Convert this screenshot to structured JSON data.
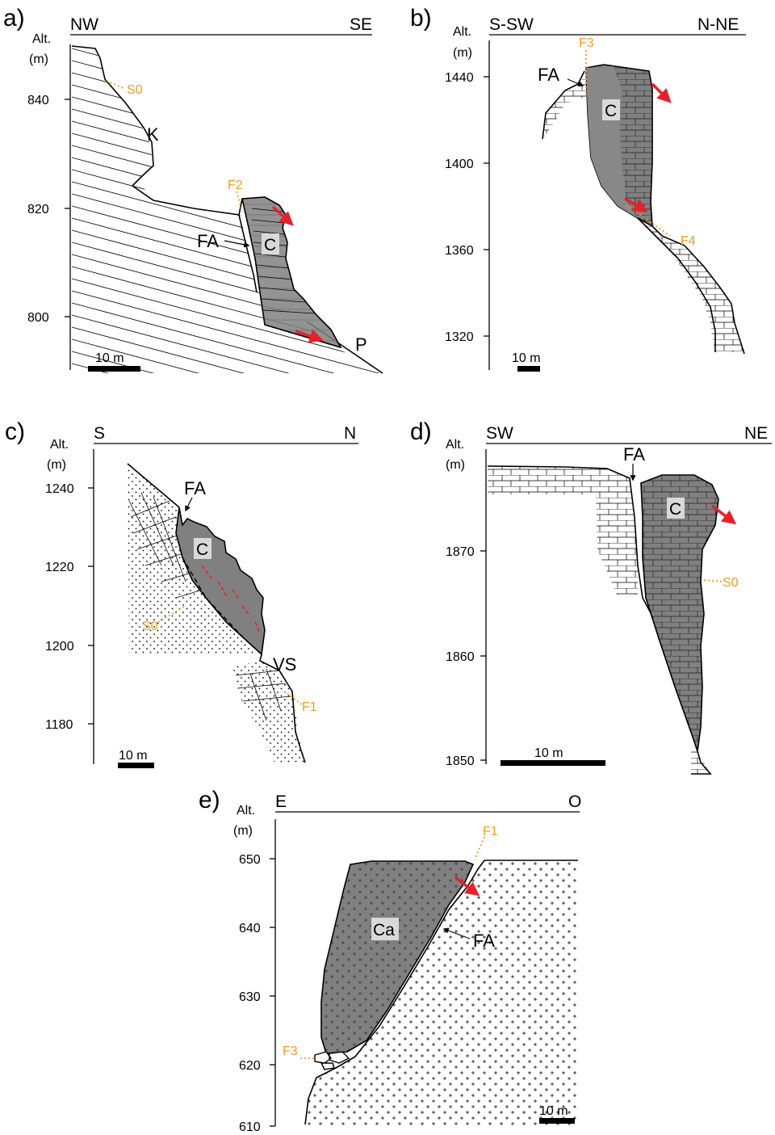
{
  "panels": {
    "a": {
      "letter": "a)",
      "dir_left": "NW",
      "dir_right": "SE",
      "alt_label_1": "Alt.",
      "alt_label_2": "(m)",
      "ticks": [
        "840",
        "820",
        "800"
      ],
      "labels": {
        "K": "K",
        "FA": "FA",
        "C": "C",
        "P": "P",
        "S0": "S0",
        "F2": "F2"
      },
      "scale": "10 m"
    },
    "b": {
      "letter": "b)",
      "dir_left": "S-SW",
      "dir_right": "N-NE",
      "alt_label_1": "Alt.",
      "alt_label_2": "(m)",
      "ticks": [
        "1440",
        "1400",
        "1360",
        "1320"
      ],
      "labels": {
        "FA": "FA",
        "C": "C",
        "F3": "F3",
        "F4": "F4"
      },
      "scale": "10 m"
    },
    "c": {
      "letter": "c)",
      "dir_left": "S",
      "dir_right": "N",
      "alt_label_1": "Alt.",
      "alt_label_2": "(m)",
      "ticks": [
        "1240",
        "1220",
        "1200",
        "1180"
      ],
      "labels": {
        "FA": "FA",
        "C": "C",
        "VS": "VS",
        "S0": "S0",
        "F1": "F1"
      },
      "scale": "10 m"
    },
    "d": {
      "letter": "d)",
      "dir_left": "SW",
      "dir_right": "NE",
      "alt_label_1": "Alt.",
      "alt_label_2": "(m)",
      "ticks": [
        "1870",
        "1860",
        "1850"
      ],
      "labels": {
        "FA": "FA",
        "C": "C",
        "S0": "S0"
      },
      "scale": "10 m"
    },
    "e": {
      "letter": "e)",
      "dir_left": "E",
      "dir_right": "O",
      "alt_label_1": "Alt.",
      "alt_label_2": "(m)",
      "ticks": [
        "650",
        "640",
        "630",
        "620",
        "610"
      ],
      "labels": {
        "FA": "FA",
        "Ca": "Ca",
        "F1": "F1",
        "F3": "F3"
      },
      "scale": "10 m"
    }
  },
  "colors": {
    "compartment": "#808080",
    "arrow": "#e8202a",
    "fracture": "#f39a1e"
  }
}
